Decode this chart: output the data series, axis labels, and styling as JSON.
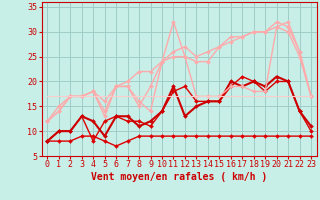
{
  "bg_color": "#c8eee8",
  "grid_color": "#a0ccc8",
  "xlabel": "Vent moyen/en rafales ( km/h )",
  "xlabel_color": "#cc0000",
  "xlabel_fontsize": 7,
  "tick_color": "#cc0000",
  "tick_fontsize": 6,
  "xlim": [
    -0.5,
    23.5
  ],
  "ylim": [
    5,
    36
  ],
  "yticks": [
    5,
    10,
    15,
    20,
    25,
    30,
    35
  ],
  "xticks": [
    0,
    1,
    2,
    3,
    4,
    5,
    6,
    7,
    8,
    9,
    10,
    11,
    12,
    13,
    14,
    15,
    16,
    17,
    18,
    19,
    20,
    21,
    22,
    23
  ],
  "lines": [
    {
      "x": [
        0,
        1,
        2,
        3,
        4,
        5,
        6,
        7,
        8,
        9,
        10,
        11,
        12,
        13,
        14,
        15,
        16,
        17,
        18,
        19,
        20,
        21,
        22,
        23
      ],
      "y": [
        8,
        8,
        8,
        9,
        9,
        8,
        7,
        8,
        9,
        9,
        9,
        9,
        9,
        9,
        9,
        9,
        9,
        9,
        9,
        9,
        9,
        9,
        9,
        9
      ],
      "color": "#dd0000",
      "lw": 1.0,
      "marker": "D",
      "ms": 2.0
    },
    {
      "x": [
        0,
        1,
        2,
        3,
        4,
        5,
        6,
        7,
        8,
        9,
        10,
        11,
        12,
        13,
        14,
        15,
        16,
        17,
        18,
        19,
        20,
        21,
        22,
        23
      ],
      "y": [
        8,
        10,
        10,
        13,
        8,
        12,
        13,
        12,
        12,
        11,
        14,
        18,
        19,
        16,
        16,
        16,
        19,
        21,
        20,
        18,
        20,
        20,
        14,
        10
      ],
      "color": "#dd0000",
      "lw": 1.0,
      "marker": "D",
      "ms": 2.0
    },
    {
      "x": [
        0,
        1,
        2,
        3,
        4,
        5,
        6,
        7,
        8,
        9,
        10,
        11,
        12,
        13,
        14,
        15,
        16,
        17,
        18,
        19,
        20,
        21,
        22,
        23
      ],
      "y": [
        8,
        10,
        10,
        13,
        12,
        9,
        13,
        13,
        11,
        12,
        14,
        19,
        13,
        15,
        16,
        16,
        20,
        19,
        20,
        19,
        21,
        20,
        14,
        11
      ],
      "color": "#cc0000",
      "lw": 1.5,
      "marker": "D",
      "ms": 2.0
    },
    {
      "x": [
        0,
        1,
        2,
        3,
        4,
        5,
        6,
        7,
        8,
        9,
        10,
        11,
        12,
        13,
        14,
        15,
        16,
        17,
        18,
        19,
        20,
        21,
        22,
        23
      ],
      "y": [
        12,
        14,
        17,
        17,
        18,
        16,
        19,
        19,
        16,
        14,
        24,
        32,
        25,
        17,
        17,
        17,
        19,
        19,
        18,
        18,
        31,
        30,
        25,
        17
      ],
      "color": "#ffaaaa",
      "lw": 1.0,
      "marker": "D",
      "ms": 2.0
    },
    {
      "x": [
        0,
        1,
        2,
        3,
        4,
        5,
        6,
        7,
        8,
        9,
        10,
        11,
        12,
        13,
        14,
        15,
        16,
        17,
        18,
        19,
        20,
        21,
        22,
        23
      ],
      "y": [
        12,
        14,
        17,
        17,
        18,
        13,
        19,
        19,
        15,
        19,
        24,
        25,
        25,
        24,
        24,
        27,
        28,
        29,
        30,
        30,
        31,
        32,
        26,
        17
      ],
      "color": "#ffaaaa",
      "lw": 1.0,
      "marker": "D",
      "ms": 2.0
    },
    {
      "x": [
        0,
        1,
        2,
        3,
        4,
        5,
        6,
        7,
        8,
        9,
        10,
        11,
        12,
        13,
        14,
        15,
        16,
        17,
        18,
        19,
        20,
        21,
        22,
        23
      ],
      "y": [
        12,
        15,
        17,
        17,
        18,
        14,
        19,
        20,
        22,
        22,
        24,
        26,
        27,
        25,
        26,
        27,
        29,
        29,
        30,
        30,
        32,
        31,
        26,
        17
      ],
      "color": "#ffaaaa",
      "lw": 1.0,
      "marker": "D",
      "ms": 2.0
    },
    {
      "x": [
        0,
        1,
        2,
        3,
        4,
        5,
        6,
        7,
        8,
        9,
        10,
        11,
        12,
        13,
        14,
        15,
        16,
        17,
        18,
        19,
        20,
        21,
        22,
        23
      ],
      "y": [
        17,
        17,
        17,
        17,
        17,
        17,
        17,
        17,
        17,
        17,
        17,
        17,
        17,
        17,
        17,
        17,
        17,
        17,
        17,
        17,
        17,
        17,
        17,
        17
      ],
      "color": "#ffcccc",
      "lw": 0.8,
      "marker": null,
      "ms": 0
    }
  ]
}
